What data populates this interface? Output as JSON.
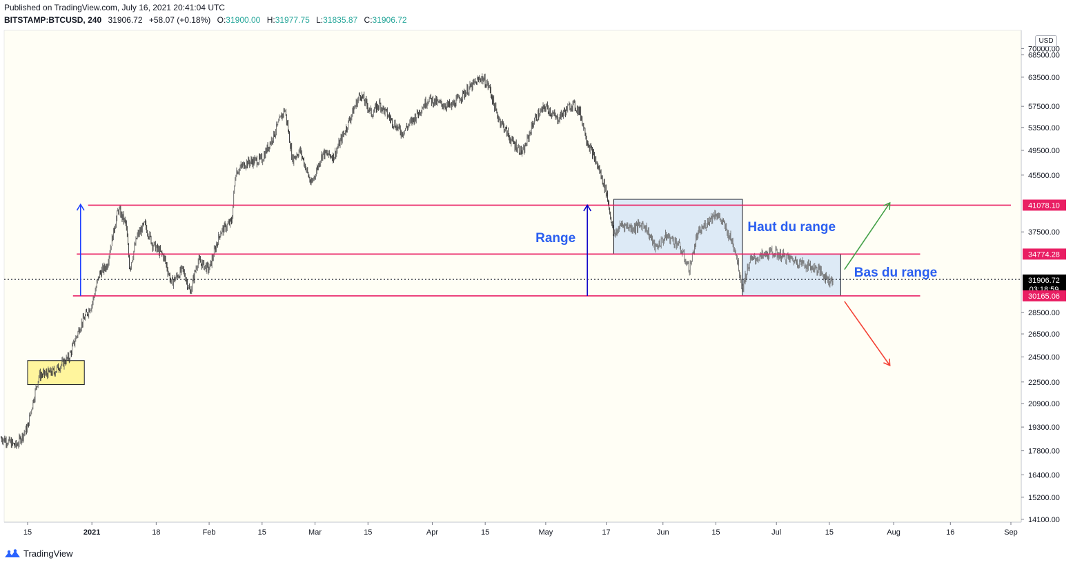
{
  "header": {
    "published": "Published on TradingView.com, July 16, 2021 20:41:04 UTC",
    "symbol": "BITSTAMP:BTCUSD, 240",
    "last": "31906.72",
    "change": "+58.07 (+0.18%)",
    "o_label": "O:",
    "o": "31900.00",
    "h_label": "H:",
    "h": "31977.75",
    "l_label": "L:",
    "l": "31835.87",
    "c_label": "C:",
    "c": "31906.72"
  },
  "currency": "USD",
  "footer": {
    "brand": "TradingView"
  },
  "colors": {
    "background": "#fffef5",
    "candle": "#3a3a3a",
    "range_line": "#e91e63",
    "range_box_fill": "#d7e6f6",
    "highlight_box_fill": "#fff59d",
    "arrow_blue": "#1e40ff",
    "arrow_dark_blue": "#0a00c8",
    "arrow_green": "#43a047",
    "arrow_red": "#f44336",
    "annotation_text": "#2a5ef0"
  },
  "chart_data": {
    "type": "candlestick",
    "x_ticks": [
      "15",
      "2021",
      "18",
      "Feb",
      "15",
      "Mar",
      "15",
      "Apr",
      "15",
      "May",
      "17",
      "Jun",
      "15",
      "Jul",
      "15",
      "Aug",
      "16",
      "Sep"
    ],
    "y_ticks": [
      "70000.00",
      "68500.00",
      "63500.00",
      "57500.00",
      "53500.00",
      "49500.00",
      "45500.00",
      "41078.10",
      "37500.00",
      "34774.28",
      "31906.72",
      "30165.06",
      "28500.00",
      "26500.00",
      "24500.00",
      "22500.00",
      "20900.00",
      "19300.00",
      "17800.00",
      "16400.00",
      "15200.00",
      "14100.00"
    ],
    "y_scale": "log",
    "price_labels": [
      {
        "value": 41078.1,
        "text": "41078.10",
        "kind": "level"
      },
      {
        "value": 34774.28,
        "text": "34774.28",
        "kind": "level"
      },
      {
        "value": 31906.72,
        "text": "31906.72",
        "sub": "03:18:59",
        "kind": "last"
      },
      {
        "value": 30165.06,
        "text": "30165.06",
        "kind": "level"
      }
    ],
    "levels": [
      {
        "value": 41078.1,
        "from": "2020-12-31",
        "to": "2021-09-01"
      },
      {
        "value": 34774.28,
        "from": "2020-12-28",
        "to": "2021-08-08"
      },
      {
        "value": 30165.06,
        "from": "2020-12-27",
        "to": "2021-08-08"
      }
    ],
    "series": [
      {
        "points": [
          [
            "2020-12-08",
            18600
          ],
          [
            "2020-12-12",
            18100
          ],
          [
            "2020-12-15",
            19300
          ],
          [
            "2020-12-18",
            23000
          ],
          [
            "2020-12-22",
            23300
          ],
          [
            "2020-12-26",
            24500
          ],
          [
            "2020-12-29",
            27300
          ],
          [
            "2021-01-01",
            29300
          ],
          [
            "2021-01-03",
            32500
          ],
          [
            "2021-01-05",
            33500
          ],
          [
            "2021-01-08",
            40500
          ],
          [
            "2021-01-10",
            38500
          ],
          [
            "2021-01-11",
            33000
          ],
          [
            "2021-01-13",
            37000
          ],
          [
            "2021-01-15",
            38500
          ],
          [
            "2021-01-17",
            36000
          ],
          [
            "2021-01-20",
            34500
          ],
          [
            "2021-01-22",
            31500
          ],
          [
            "2021-01-25",
            33000
          ],
          [
            "2021-01-27",
            30500
          ],
          [
            "2021-01-29",
            34000
          ],
          [
            "2021-02-01",
            33000
          ],
          [
            "2021-02-04",
            37500
          ],
          [
            "2021-02-07",
            38900
          ],
          [
            "2021-02-08",
            46000
          ],
          [
            "2021-02-11",
            47500
          ],
          [
            "2021-02-15",
            48000
          ],
          [
            "2021-02-18",
            52000
          ],
          [
            "2021-02-21",
            57000
          ],
          [
            "2021-02-23",
            48000
          ],
          [
            "2021-02-25",
            49500
          ],
          [
            "2021-02-28",
            44000
          ],
          [
            "2021-03-03",
            49000
          ],
          [
            "2021-03-06",
            48500
          ],
          [
            "2021-03-09",
            53000
          ],
          [
            "2021-03-13",
            60000
          ],
          [
            "2021-03-16",
            56000
          ],
          [
            "2021-03-18",
            58000
          ],
          [
            "2021-03-21",
            55000
          ],
          [
            "2021-03-24",
            52500
          ],
          [
            "2021-03-27",
            55000
          ],
          [
            "2021-03-31",
            59000
          ],
          [
            "2021-04-03",
            58000
          ],
          [
            "2021-04-06",
            57500
          ],
          [
            "2021-04-10",
            60500
          ],
          [
            "2021-04-14",
            63500
          ],
          [
            "2021-04-16",
            61500
          ],
          [
            "2021-04-18",
            56000
          ],
          [
            "2021-04-22",
            51000
          ],
          [
            "2021-04-25",
            49000
          ],
          [
            "2021-04-28",
            55000
          ],
          [
            "2021-05-01",
            57500
          ],
          [
            "2021-05-04",
            55000
          ],
          [
            "2021-05-08",
            58000
          ],
          [
            "2021-05-10",
            56500
          ],
          [
            "2021-05-12",
            51000
          ],
          [
            "2021-05-15",
            46500
          ],
          [
            "2021-05-17",
            43000
          ],
          [
            "2021-05-19",
            37000
          ],
          [
            "2021-05-21",
            38500
          ],
          [
            "2021-05-24",
            38000
          ],
          [
            "2021-05-27",
            38500
          ],
          [
            "2021-05-30",
            35500
          ],
          [
            "2021-06-02",
            37000
          ],
          [
            "2021-06-05",
            36000
          ],
          [
            "2021-06-08",
            33000
          ],
          [
            "2021-06-10",
            37000
          ],
          [
            "2021-06-13",
            39000
          ],
          [
            "2021-06-15",
            40000
          ],
          [
            "2021-06-17",
            38500
          ],
          [
            "2021-06-20",
            35500
          ],
          [
            "2021-06-22",
            31000
          ],
          [
            "2021-06-24",
            34000
          ],
          [
            "2021-06-27",
            34500
          ],
          [
            "2021-06-30",
            35000
          ],
          [
            "2021-07-03",
            34500
          ],
          [
            "2021-07-06",
            34000
          ],
          [
            "2021-07-09",
            33500
          ],
          [
            "2021-07-12",
            33000
          ],
          [
            "2021-07-15",
            31800
          ],
          [
            "2021-07-16",
            31906.72
          ]
        ]
      }
    ],
    "annotations": [
      {
        "text": "Range"
      },
      {
        "text": "Haut du range"
      },
      {
        "text": "Bas du range"
      }
    ]
  }
}
